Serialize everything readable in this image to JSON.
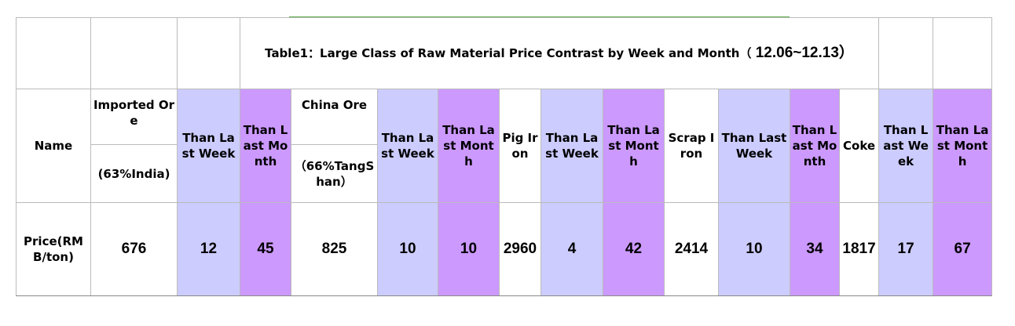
{
  "title": "Table1：Large Class of Raw Material Price Contrast by Week and Month（",
  "period": "12.06~12.13）",
  "columns": [
    {
      "label": "Name"
    },
    {
      "label": "Imported Ore",
      "sub": "(63%India)"
    },
    {
      "label": "Than Last Week",
      "color": "#ccccff"
    },
    {
      "label": "Than Last Month",
      "color": "#cc99ff"
    },
    {
      "label": "China Ore",
      "sub": "（66%TangShan）"
    },
    {
      "label": "Than Last Week",
      "color": "#ccccff"
    },
    {
      "label": "Than Last Month",
      "color": "#cc99ff"
    },
    {
      "label": "Pig Iron"
    },
    {
      "label": "Than Last Week",
      "color": "#ccccff"
    },
    {
      "label": "Than Last Month",
      "color": "#cc99ff"
    },
    {
      "label": "Scrap Iron"
    },
    {
      "label": "Than Last Week",
      "color": "#ccccff"
    },
    {
      "label": "Than Last Month",
      "color": "#cc99ff"
    },
    {
      "label": "Coke"
    },
    {
      "label": "Than Last Week",
      "color": "#ccccff"
    },
    {
      "label": "Than Last Month",
      "color": "#cc99ff"
    }
  ],
  "row": {
    "label": "Price(RMB/ton)",
    "values": [
      676,
      12,
      45,
      825,
      10,
      10,
      2960,
      4,
      42,
      2414,
      10,
      34,
      1817,
      17,
      67
    ]
  }
}
